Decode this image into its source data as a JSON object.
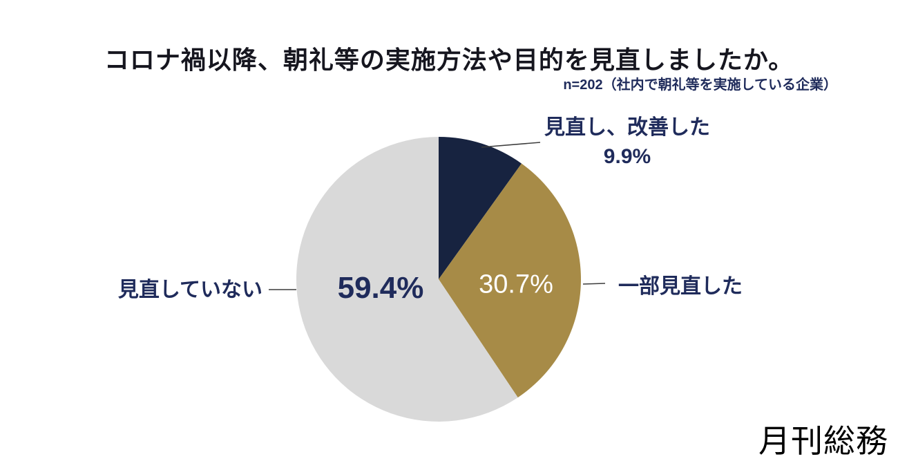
{
  "title": "コロナ禍以降、朝礼等の実施方法や目的を見直しましたか。",
  "sample_note": "n=202（社内で朝礼等を実施している企業）",
  "brand_logo_text": "月刊総務",
  "colors": {
    "background": "#ffffff",
    "title_text": "#16161f",
    "navy_text": "#1f2b5b",
    "white_text": "#ffffff",
    "leader_line": "#3c3c3c"
  },
  "chart_data": {
    "type": "pie",
    "title": "コロナ禍以降、朝礼等の実施方法や目的を見直しましたか。",
    "subtitle": "n=202（社内で朝礼等を実施している企業）",
    "start_angle": "top",
    "direction": "clockwise",
    "legend_position": "outside-callouts",
    "segments": [
      {
        "id": "improved",
        "label": "見直し、改善した",
        "value": 9.9,
        "display": "9.9%",
        "color": "#172340",
        "label_position": "outside-top-right"
      },
      {
        "id": "partial",
        "label": "一部見直した",
        "value": 30.7,
        "display": "30.7%",
        "color": "#a78b47",
        "label_position": "inside-and-outside-right"
      },
      {
        "id": "none",
        "label": "見直していない",
        "value": 59.4,
        "display": "59.4%",
        "color": "#d9d9d9",
        "label_position": "inside-and-outside-left"
      }
    ]
  }
}
